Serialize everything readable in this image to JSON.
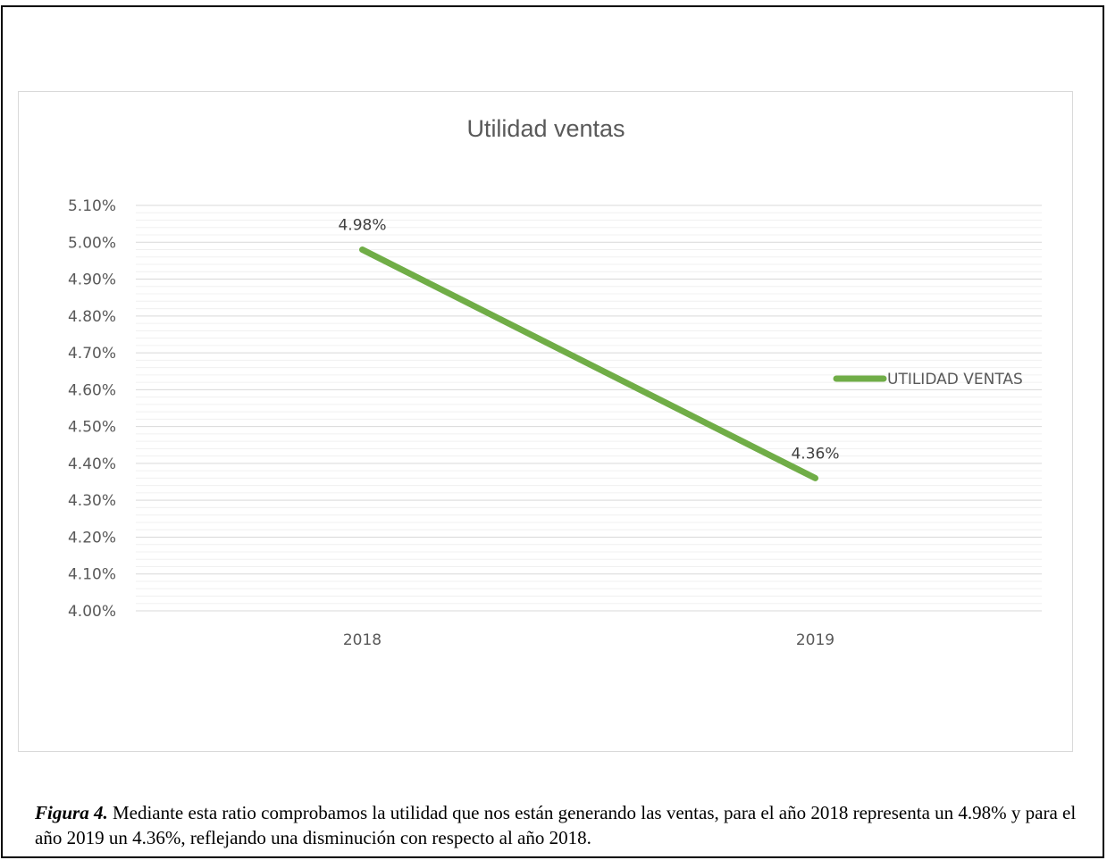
{
  "chart_data": {
    "type": "line",
    "title": "Utilidad ventas",
    "categories": [
      "2018",
      "2019"
    ],
    "series": [
      {
        "name": "UTILIDAD VENTAS",
        "values": [
          4.98,
          4.36
        ],
        "color": "#70ad47"
      }
    ],
    "data_labels": [
      "4.98%",
      "4.36%"
    ],
    "ylim": [
      4.0,
      5.1
    ],
    "ytick_labels": [
      "5.10%",
      "5.00%",
      "4.90%",
      "4.80%",
      "4.70%",
      "4.60%",
      "4.50%",
      "4.40%",
      "4.30%",
      "4.20%",
      "4.10%",
      "4.00%"
    ],
    "ytick_values": [
      5.1,
      5.0,
      4.9,
      4.8,
      4.7,
      4.6,
      4.5,
      4.4,
      4.3,
      4.2,
      4.1,
      4.0
    ],
    "xlabel": "",
    "ylabel": "",
    "grid": true,
    "legend_position": "right"
  },
  "caption": {
    "label": "Figura 4.",
    "text": "Mediante esta ratio comprobamos la utilidad que nos están generando las ventas, para el año 2018 representa un 4.98% y para el año 2019 un 4.36%, reflejando una disminución con respecto al año 2018."
  }
}
